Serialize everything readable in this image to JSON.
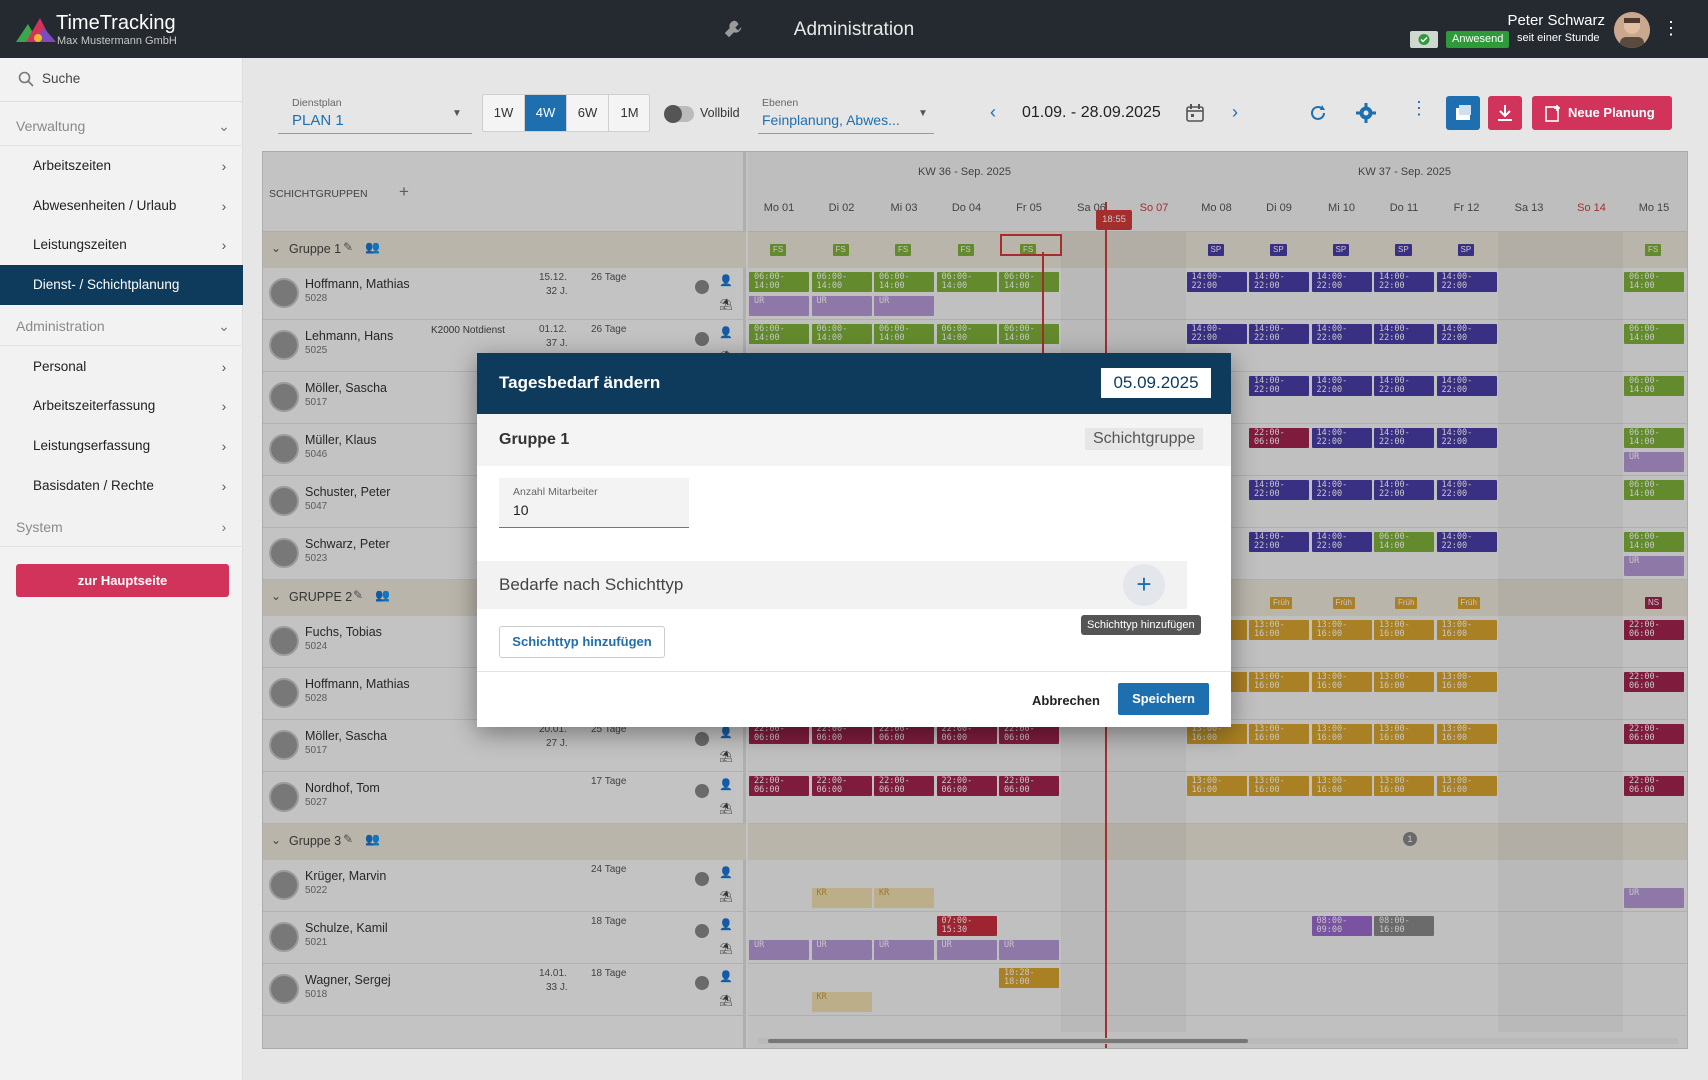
{
  "app": {
    "title": "TimeTracking",
    "company": "Max Mustermann GmbH",
    "section_title": "Administration"
  },
  "user": {
    "name": "Peter Schwarz",
    "presence": "Anwesend",
    "since": "seit einer Stunde"
  },
  "sidebar": {
    "search": "Suche",
    "sections": [
      {
        "label": "Verwaltung",
        "items": [
          "Arbeitszeiten",
          "Abwesenheiten / Urlaub",
          "Leistungszeiten",
          "Dienst- / Schichtplanung"
        ]
      },
      {
        "label": "Administration",
        "items": [
          "Personal",
          "Arbeitszeiterfassung",
          "Leistungserfassung",
          "Basisdaten / Rechte"
        ]
      },
      {
        "label": "System",
        "items": []
      }
    ],
    "active_item": "Dienst- / Schichtplanung",
    "home_button": "zur Hauptseite"
  },
  "toolbar": {
    "plan_label": "Dienstplan",
    "plan_value": "PLAN 1",
    "ranges": [
      "1W",
      "4W",
      "6W",
      "1M"
    ],
    "active_range": "4W",
    "fullscreen_label": "Vollbild",
    "levels_label": "Ebenen",
    "levels_value": "Feinplanung, Abwes...",
    "date_range": "01.09. - 28.09.2025",
    "new_plan_label": "Neue Planung"
  },
  "grid": {
    "header_label": "SCHICHTGRUPPEN",
    "weeks": [
      "KW 36 - Sep. 2025",
      "KW 37 - Sep. 2025"
    ],
    "days": [
      "Mo 01",
      "Di 02",
      "Mi 03",
      "Do 04",
      "Fr 05",
      "Sa 06",
      "So 07",
      "Mo 08",
      "Di 09",
      "Mi 10",
      "Do 11",
      "Fr 12",
      "Sa 13",
      "So 14",
      "Mo 15"
    ],
    "now_marker": "18:55",
    "groups": [
      {
        "name": "Gruppe 1",
        "employees": [
          {
            "name": "Hoffmann, Mathias",
            "id": "5028",
            "note": "",
            "date": "15.12.",
            "age": "32 J.",
            "days": "26 Tage"
          },
          {
            "name": "Lehmann, Hans",
            "id": "5025",
            "note": "K2000 Notdienst",
            "date": "01.12.",
            "age": "37 J.",
            "days": "26 Tage"
          },
          {
            "name": "Möller, Sascha",
            "id": "5017",
            "note": "",
            "date": "",
            "age": "",
            "days": ""
          },
          {
            "name": "Müller, Klaus",
            "id": "5046",
            "note": "",
            "date": "",
            "age": "",
            "days": ""
          },
          {
            "name": "Schuster, Peter",
            "id": "5047",
            "note": "",
            "date": "",
            "age": "",
            "days": ""
          },
          {
            "name": "Schwarz, Peter",
            "id": "5023",
            "note": "",
            "date": "",
            "age": "",
            "days": ""
          }
        ]
      },
      {
        "name": "GRUPPE 2",
        "employees": [
          {
            "name": "Fuchs, Tobias",
            "id": "5024",
            "note": "",
            "date": "",
            "age": "",
            "days": ""
          },
          {
            "name": "Hoffmann, Mathias",
            "id": "5028",
            "note": "",
            "date": "",
            "age": "",
            "days": ""
          },
          {
            "name": "Möller, Sascha",
            "id": "5017",
            "note": "",
            "date": "20.01.",
            "age": "27 J.",
            "days": "25 Tage"
          },
          {
            "name": "Nordhof, Tom",
            "id": "5027",
            "note": "",
            "date": "",
            "age": "",
            "days": "17 Tage"
          }
        ]
      },
      {
        "name": "Gruppe 3",
        "employees": [
          {
            "name": "Krüger, Marvin",
            "id": "5022",
            "note": "",
            "date": "",
            "age": "",
            "days": "24 Tage"
          },
          {
            "name": "Schulze, Kamil",
            "id": "5021",
            "note": "",
            "date": "",
            "age": "",
            "days": "18 Tage"
          },
          {
            "name": "Wagner, Sergej",
            "id": "5018",
            "note": "",
            "date": "14.01.",
            "age": "33 J.",
            "days": "18 Tage"
          }
        ]
      }
    ],
    "shift_texts": {
      "early": "06:00- 14:00",
      "late": "14:00- 22:00",
      "night": "22:00- 06:00",
      "mid": "13:00- 16:00",
      "ur": "UR",
      "kr": "KR",
      "fs": "FS",
      "sp": "SP",
      "frueh": "Früh",
      "ns": "NS"
    },
    "misc_shifts": {
      "s1": "07:00- 15:30",
      "s2": "08:00- 09:00",
      "s3": "08:00- 16:00",
      "s4": "10:28- 18:00"
    },
    "group3_count": "1"
  },
  "dialog": {
    "title": "Tagesbedarf ändern",
    "date": "05.09.2025",
    "group_name": "Gruppe 1",
    "group_type": "Schichtgruppe",
    "employee_count_label": "Anzahl Mitarbeiter",
    "employee_count": "10",
    "demand_title": "Bedarfe nach Schichttyp",
    "add_tooltip": "Schichttyp hinzufügen",
    "add_button": "Schichttyp hinzufügen",
    "cancel": "Abbrechen",
    "save": "Speichern"
  },
  "colors": {
    "accent": "#1e6fb0",
    "header": "#0e3a5c",
    "danger": "#d2335b",
    "early": "#7fb23a",
    "late": "#4b3ea8",
    "night": "#a3244f",
    "mid": "#d9a52e",
    "ur": "#b79ad6",
    "kr": "#f2dfb1"
  }
}
